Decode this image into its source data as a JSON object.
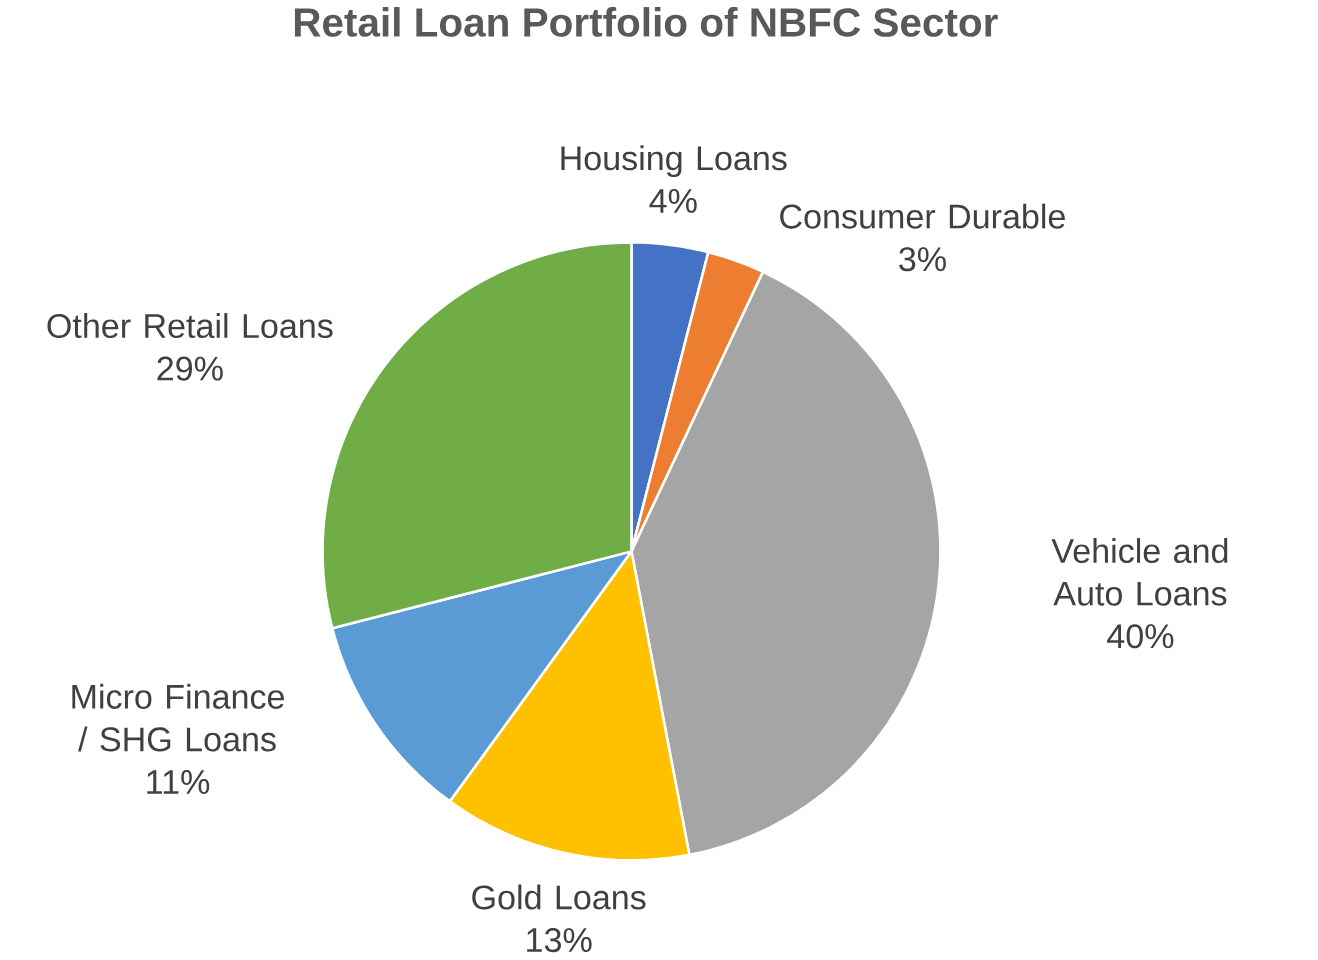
{
  "chart_data": {
    "type": "pie",
    "title": "Retail Loan Portfolio of NBFC Sector",
    "categories": [
      "Housing Loans",
      "Consumer Durable",
      "Vehicle and Auto Loans",
      "Gold Loans",
      "Micro Finance / SHG Loans",
      "Other Retail Loans"
    ],
    "values": [
      4,
      3,
      40,
      13,
      11,
      29
    ],
    "value_labels": [
      "4%",
      "3%",
      "40%",
      "13%",
      "11%",
      "29%"
    ],
    "colors": [
      "#4472c4",
      "#ed7d31",
      "#a5a5a5",
      "#ffc000",
      "#5b9bd5",
      "#70ad47"
    ]
  }
}
